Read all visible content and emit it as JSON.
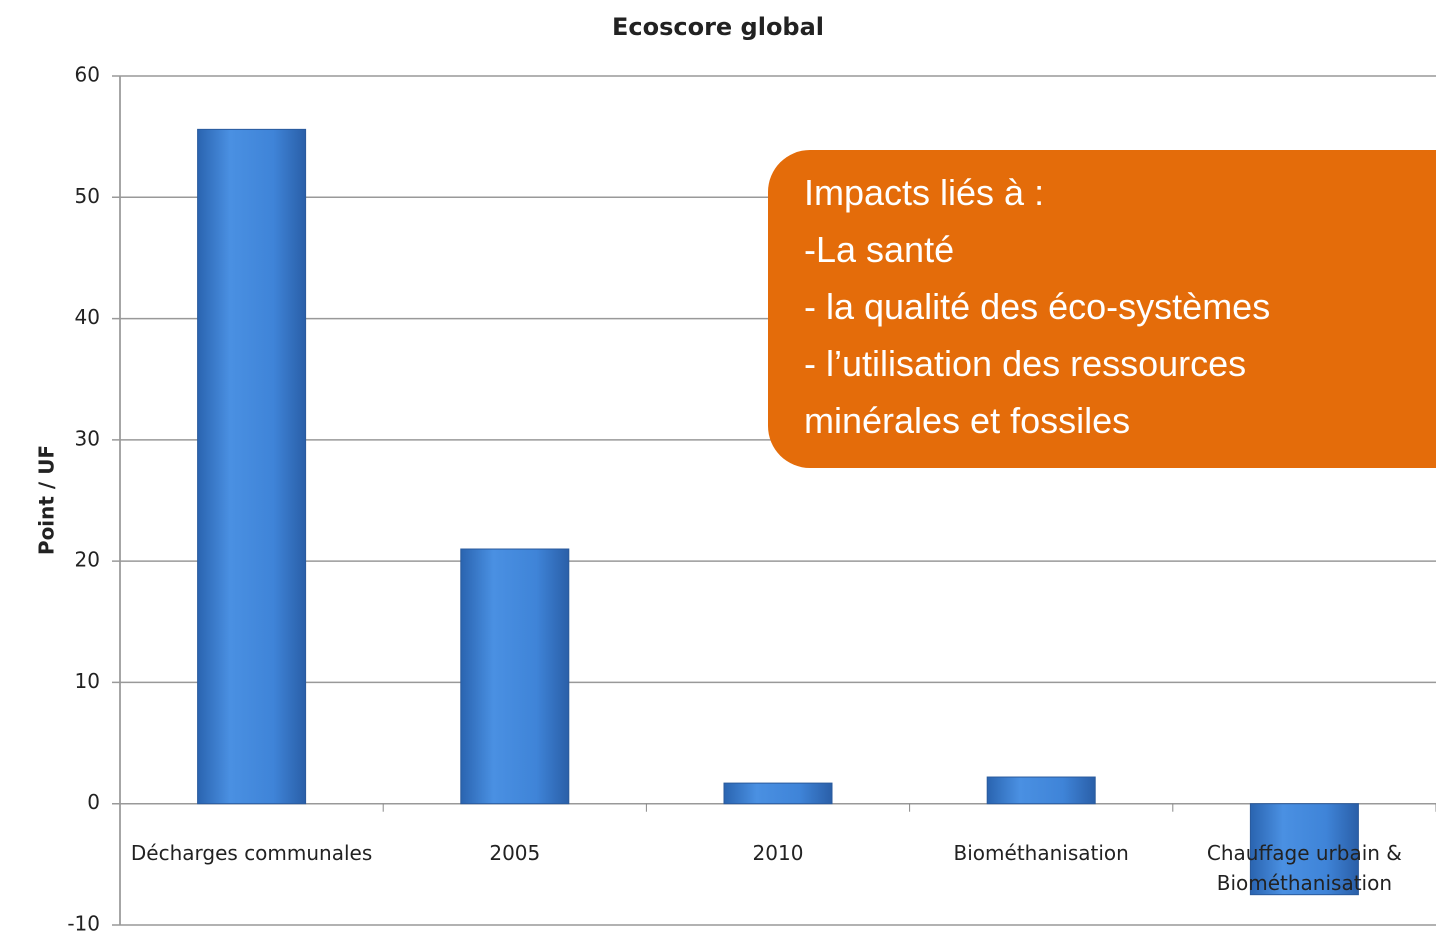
{
  "chart_data": {
    "type": "bar",
    "title": "Ecoscore global",
    "y_label": "Point / UF",
    "categories": [
      "Décharges communales",
      "2005",
      "2010",
      "Biométhanisation",
      "Chauffage urbain & Biométhanisation"
    ],
    "values": [
      55.6,
      21.0,
      1.7,
      2.2,
      -7.5
    ],
    "color": "#3f84d8",
    "ylim": [
      -10,
      60
    ],
    "yticks": [
      -10,
      0,
      10,
      20,
      30,
      40,
      50,
      60
    ],
    "grid": true,
    "annotation": [
      "Impacts liés à :",
      "-La santé",
      "- la qualité des éco-systèmes",
      "- l’utilisation des ressources",
      "minérales et fossiles"
    ]
  }
}
